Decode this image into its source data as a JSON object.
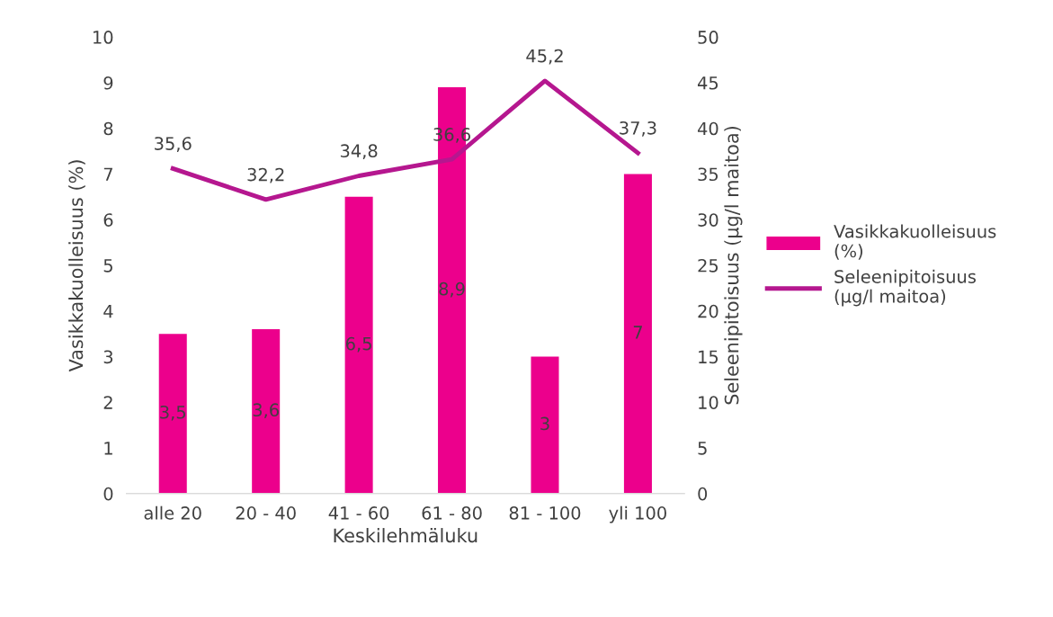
{
  "chart_data": {
    "type": "bar",
    "xlabel": "Keskilehmäluku",
    "ylabel": "Vasikkakuolleisuus (%)",
    "y2label": "Seleenipitoisuus (µg/l maitoa)",
    "categories": [
      "alle 20",
      "20 - 40",
      "41 - 60",
      "61 - 80",
      "81 - 100",
      "yli 100"
    ],
    "series": [
      {
        "name": "Vasikkakuolleisuus (%)",
        "color": "#ec008c",
        "values": [
          3.5,
          3.6,
          6.5,
          8.9,
          3,
          7
        ],
        "value_labels": [
          "3,5",
          "3,6",
          "6,5",
          "8,9",
          "3",
          "7"
        ]
      },
      {
        "name": "Seleenipitoisuus (µg/l maitoa)",
        "type": "line",
        "axis": "y2",
        "color": "#b5178f",
        "values": [
          35.6,
          32.2,
          34.8,
          36.6,
          45.2,
          37.3
        ],
        "value_labels": [
          "35,6",
          "32,2",
          "34,8",
          "36,6",
          "45,2",
          "37,3"
        ]
      }
    ],
    "ylim": [
      0,
      10
    ],
    "yticks": [
      0,
      1,
      2,
      3,
      4,
      5,
      6,
      7,
      8,
      9,
      10
    ],
    "y2lim": [
      0,
      50
    ],
    "y2ticks": [
      0,
      5,
      10,
      15,
      20,
      25,
      30,
      35,
      40,
      45,
      50
    ],
    "grid": false,
    "legend": "right",
    "marker": "none",
    "line_style": "solid"
  }
}
